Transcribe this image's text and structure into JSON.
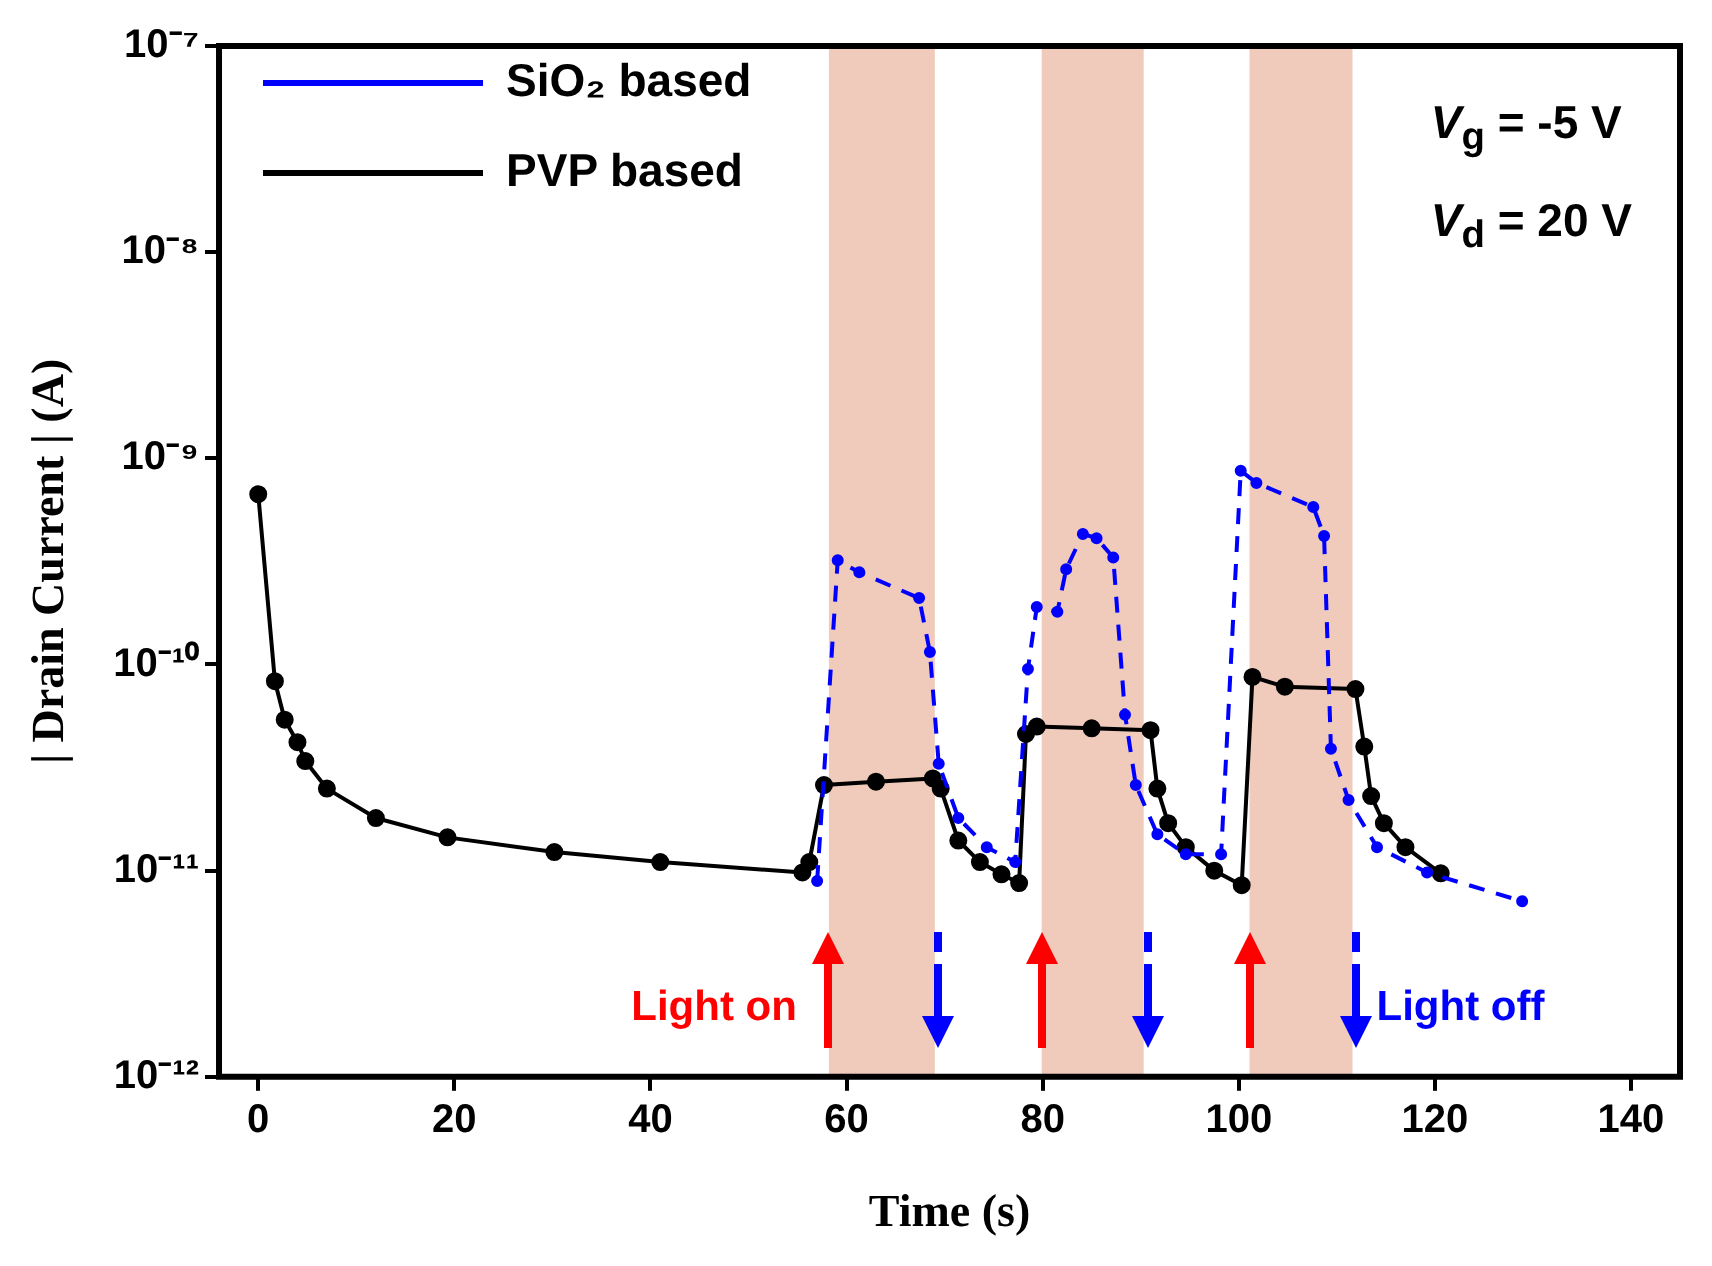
{
  "chart_data": {
    "type": "line",
    "xlabel": "Time (s)",
    "ylabel": "| Drain Current | (A)",
    "xlim": [
      -4,
      145
    ],
    "xticks": [
      0,
      20,
      40,
      60,
      80,
      100,
      120,
      140
    ],
    "ylim": [
      1e-12,
      1e-07
    ],
    "yticks": [
      {
        "value": 1e-12,
        "label": "10⁻¹²"
      },
      {
        "value": 1e-11,
        "label": "10⁻¹¹"
      },
      {
        "value": 1e-10,
        "label": "10⁻¹⁰"
      },
      {
        "value": 1e-09,
        "label": "10⁻⁹"
      },
      {
        "value": 1e-08,
        "label": "10⁻⁸"
      },
      {
        "value": 1e-07,
        "label": "10⁻⁷"
      }
    ],
    "log": "y",
    "grid": false,
    "legend": "top left",
    "marker": "circle",
    "series": [
      {
        "name": "SiO₂ based",
        "color": "#0000ff",
        "line_style": "dashed",
        "x": [
          57,
          59.1,
          61.3,
          67.4,
          68.5,
          69.4,
          71.4,
          74.3,
          77.2,
          78.5,
          79.4,
          81.5,
          82.4,
          84.1,
          85.5,
          87.2,
          88.4,
          89.5,
          91.7,
          94.6,
          98.2,
          100.2,
          101.8,
          107.6,
          108.7,
          109.4,
          111.2,
          114.1,
          119.2,
          128.9
        ],
        "values": [
          8.9e-12,
          3.2e-10,
          2.8e-10,
          2.1e-10,
          1.15e-10,
          3.3e-11,
          1.8e-11,
          1.3e-11,
          1.1e-11,
          9.5e-11,
          1.9e-10,
          1.8e-10,
          2.9e-10,
          4.3e-10,
          4.1e-10,
          3.3e-10,
          5.7e-11,
          2.6e-11,
          1.5e-11,
          1.2e-11,
          1.2e-11,
          8.7e-10,
          7.6e-10,
          5.8e-10,
          4.2e-10,
          3.9e-11,
          2.2e-11,
          1.3e-11,
          9.8e-12,
          7.1e-12
        ]
      },
      {
        "name": "PVP based",
        "color": "#000000",
        "line_style": "solid",
        "x": [
          0,
          1.7,
          2.7,
          4,
          4.8,
          7,
          12,
          19.3,
          30.2,
          41,
          55.5,
          56.2,
          57.7,
          63,
          68.8,
          69.6,
          71.4,
          73.6,
          75.8,
          77.6,
          78.3,
          79.4,
          85,
          91,
          91.7,
          92.8,
          94.6,
          97.5,
          100.3,
          101.4,
          104.7,
          111.9,
          112.8,
          113.5,
          114.8,
          117,
          120.6
        ],
        "values": [
          6.7e-10,
          8.3e-11,
          5.4e-11,
          4.2e-11,
          3.4e-11,
          2.5e-11,
          1.8e-11,
          1.45e-11,
          1.23e-11,
          1.1e-11,
          9.8e-12,
          1.1e-11,
          2.6e-11,
          2.7e-11,
          2.8e-11,
          2.5e-11,
          1.4e-11,
          1.1e-11,
          9.6e-12,
          8.7e-12,
          4.6e-11,
          5e-11,
          4.9e-11,
          4.8e-11,
          2.5e-11,
          1.7e-11,
          1.3e-11,
          1e-11,
          8.5e-12,
          8.7e-11,
          7.8e-11,
          7.6e-11,
          4e-11,
          2.3e-11,
          1.7e-11,
          1.3e-11,
          9.7e-12
        ]
      }
    ],
    "bands": [
      {
        "axis": "x",
        "from": 58.2,
        "to": 69,
        "color": "#f0cabb"
      },
      {
        "axis": "x",
        "from": 79.9,
        "to": 90.3,
        "color": "#f0cabb"
      },
      {
        "axis": "x",
        "from": 101.1,
        "to": 111.6,
        "color": "#f0cabb"
      }
    ],
    "annotations": [
      "V$_{g}$ = -5 V",
      "V$_{d}$ = 20 V",
      "Light on",
      "Light off"
    ]
  }
}
